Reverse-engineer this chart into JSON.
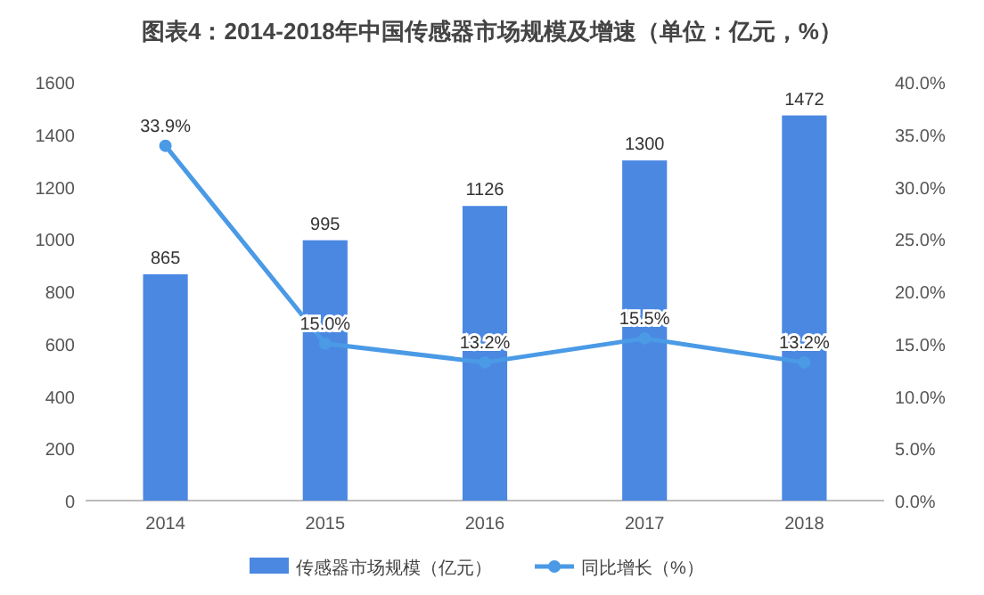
{
  "chart_data": {
    "type": "bar",
    "title": "图表4：2014-2018年中国传感器市场规模及增速（单位：亿元，%）",
    "categories": [
      "2014",
      "2015",
      "2016",
      "2017",
      "2018"
    ],
    "series": [
      {
        "name": "传感器市场规模（亿元）",
        "color": "#4a88e2",
        "values": [
          865,
          995,
          1126,
          1300,
          1472
        ],
        "value_labels": [
          "865",
          "995",
          "1126",
          "1300",
          "1472"
        ]
      },
      {
        "name": "同比增长（%）",
        "type": "line",
        "axis": "y2",
        "color": "#4a9ae6",
        "marker": "circle",
        "values": [
          33.9,
          15.0,
          13.2,
          15.5,
          13.2
        ],
        "value_labels": [
          "33.9%",
          "15.0%",
          "13.2%",
          "15.5%",
          "13.2%"
        ]
      }
    ],
    "ylim": [
      0,
      1600
    ],
    "yticks": [
      0,
      200,
      400,
      600,
      800,
      1000,
      1200,
      1400,
      1600
    ],
    "y2lim": [
      0,
      40
    ],
    "y2ticks": [
      {
        "value": 0,
        "label": "0.0%"
      },
      {
        "value": 5,
        "label": "5.0%"
      },
      {
        "value": 10,
        "label": "10.0%"
      },
      {
        "value": 15,
        "label": "15.0%"
      },
      {
        "value": 20,
        "label": "20.0%"
      },
      {
        "value": 25,
        "label": "25.0%"
      },
      {
        "value": 30,
        "label": "30.0%"
      },
      {
        "value": 35,
        "label": "35.0%"
      },
      {
        "value": 40,
        "label": "40.0%"
      }
    ],
    "legend": "bottom"
  }
}
